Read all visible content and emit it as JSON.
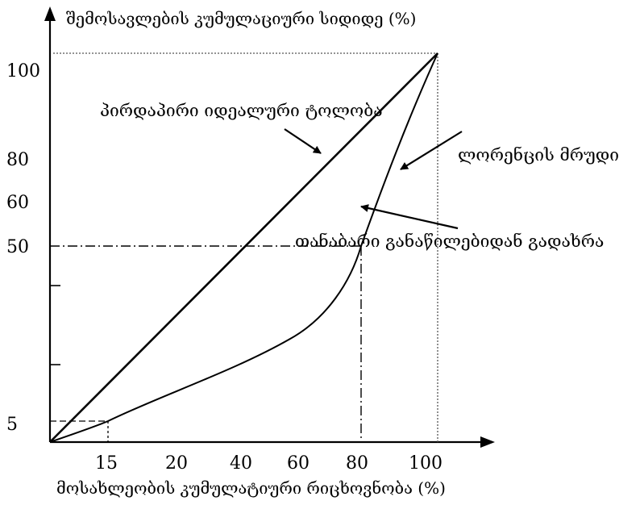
{
  "y_axis": {
    "title": "შემოსავლების კუმულაციური სიდიდე (%)",
    "tick_labels": [
      "100",
      "80",
      "60",
      "50",
      "5"
    ]
  },
  "x_axis": {
    "title": "მოსახლეობის კუმულატიური რიცხოვნობა (%)",
    "tick_labels": [
      "15",
      "20",
      "40",
      "60",
      "80",
      "100"
    ]
  },
  "annotations": {
    "equality_line": "პირდაპირი იდეალური ტოლობა",
    "lorenz_curve": "ლორენცის მრუდი",
    "deviation": "თანაბარი განაწილებიდან გადახრა"
  }
}
